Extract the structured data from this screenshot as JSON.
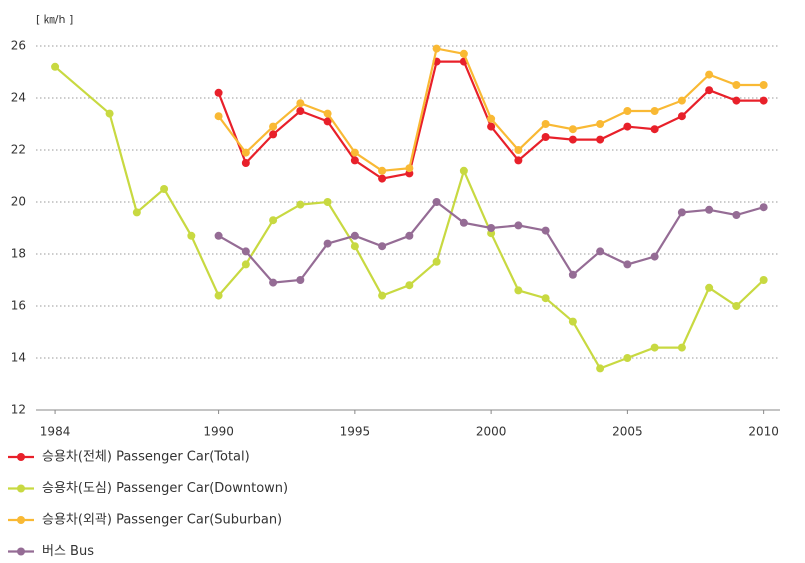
{
  "chart_data": {
    "type": "line",
    "y_axis_label": "[ ㎞/h ]",
    "xlim": [
      1983.3,
      2010.6
    ],
    "xticks": [
      1984,
      1990,
      1995,
      2000,
      2005,
      2010
    ],
    "ylim": [
      12,
      26
    ],
    "yticks": [
      12,
      14,
      16,
      18,
      20,
      22,
      24,
      26
    ],
    "grid": true,
    "legend": "bottom-left",
    "series": [
      {
        "name": "승용차(전체) Passenger Car(Total)",
        "color": "#e8202a",
        "x": [
          1990,
          1991,
          1992,
          1993,
          1994,
          1995,
          1996,
          1997,
          1998,
          1999,
          2000,
          2001,
          2002,
          2003,
          2004,
          2005,
          2006,
          2007,
          2008,
          2009,
          2010
        ],
        "values": [
          24.2,
          21.5,
          22.6,
          23.5,
          23.1,
          21.6,
          20.9,
          21.1,
          25.4,
          25.4,
          22.9,
          21.6,
          22.5,
          22.4,
          22.4,
          22.9,
          22.8,
          23.3,
          24.3,
          23.9,
          23.9
        ]
      },
      {
        "name": "승용차(도심) Passenger Car(Downtown)",
        "color": "#c8d941",
        "x": [
          1984,
          1986,
          1987,
          1988,
          1989,
          1990,
          1991,
          1992,
          1993,
          1994,
          1995,
          1996,
          1997,
          1998,
          1999,
          2000,
          2001,
          2002,
          2003,
          2004,
          2005,
          2006,
          2007,
          2008,
          2009,
          2010
        ],
        "values": [
          25.2,
          23.4,
          19.6,
          20.5,
          18.7,
          16.4,
          17.6,
          19.3,
          19.9,
          20.0,
          18.3,
          16.4,
          16.8,
          17.7,
          21.2,
          18.8,
          16.6,
          16.3,
          15.4,
          13.6,
          14.0,
          14.4,
          14.4,
          16.7,
          16.0,
          17.0
        ]
      },
      {
        "name": "승용차(외곽) Passenger Car(Suburban)",
        "color": "#f9b934",
        "x": [
          1990,
          1991,
          1992,
          1993,
          1994,
          1995,
          1996,
          1997,
          1998,
          1999,
          2000,
          2001,
          2002,
          2003,
          2004,
          2005,
          2006,
          2007,
          2008,
          2009,
          2010
        ],
        "values": [
          23.3,
          21.9,
          22.9,
          23.8,
          23.4,
          21.9,
          21.2,
          21.3,
          25.9,
          25.7,
          23.2,
          22.0,
          23.0,
          22.8,
          23.0,
          23.5,
          23.5,
          23.9,
          24.9,
          24.5,
          24.5
        ]
      },
      {
        "name": "버스 Bus",
        "color": "#956c95",
        "x": [
          1990,
          1991,
          1992,
          1993,
          1994,
          1995,
          1996,
          1997,
          1998,
          1999,
          2000,
          2001,
          2002,
          2003,
          2004,
          2005,
          2006,
          2007,
          2008,
          2009,
          2010
        ],
        "values": [
          18.7,
          18.1,
          16.9,
          17.0,
          18.4,
          18.7,
          18.3,
          18.7,
          20.0,
          19.2,
          19.0,
          19.1,
          18.9,
          17.2,
          18.1,
          17.6,
          17.9,
          19.6,
          19.7,
          19.5,
          19.8
        ]
      }
    ]
  }
}
